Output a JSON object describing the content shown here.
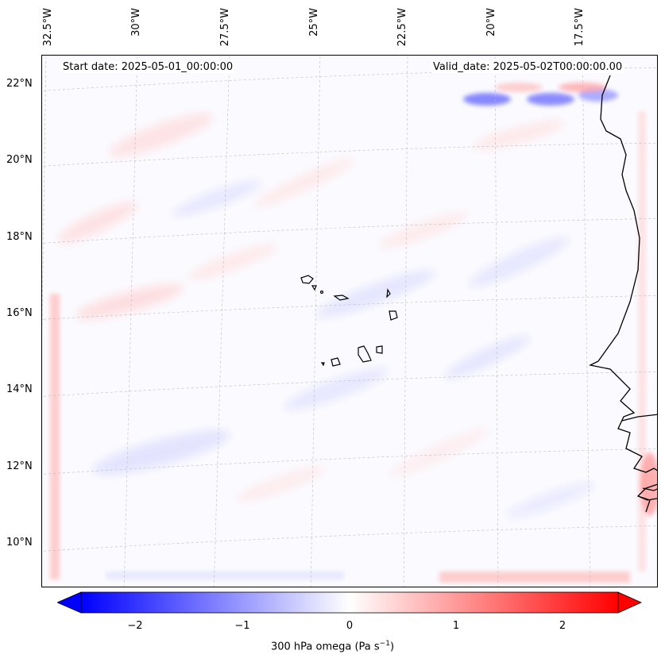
{
  "header": {
    "start_date": "Start date: 2025-05-01_00:00:00",
    "valid_date": "Valid_date: 2025-05-02T00:00:00.00"
  },
  "map": {
    "variable": "300 hPa omega",
    "units": "Pa s",
    "units_exponent": "−1",
    "lon_labels": [
      "32.5°W",
      "30°W",
      "27.5°W",
      "25°W",
      "22.5°W",
      "20°W",
      "17.5°W"
    ],
    "lat_labels": [
      "22°N",
      "20°N",
      "18°N",
      "16°N",
      "14°N",
      "12°N",
      "10°N"
    ],
    "islands": "Cape Verde",
    "coast": "West Africa (Senegal / Gambia / Guinea-Bissau)"
  },
  "colorbar": {
    "min": -2.5,
    "max": 2.5,
    "ticks": [
      "−2",
      "−1",
      "0",
      "1",
      "2"
    ],
    "tick_values": [
      -2,
      -1,
      0,
      1,
      2
    ],
    "extend": "both",
    "cmap": "bwr",
    "low_color": "#0000ff",
    "mid_color": "#ffffff",
    "high_color": "#ff0000",
    "label_prefix": "300 hPa omega (Pa s"
  }
}
